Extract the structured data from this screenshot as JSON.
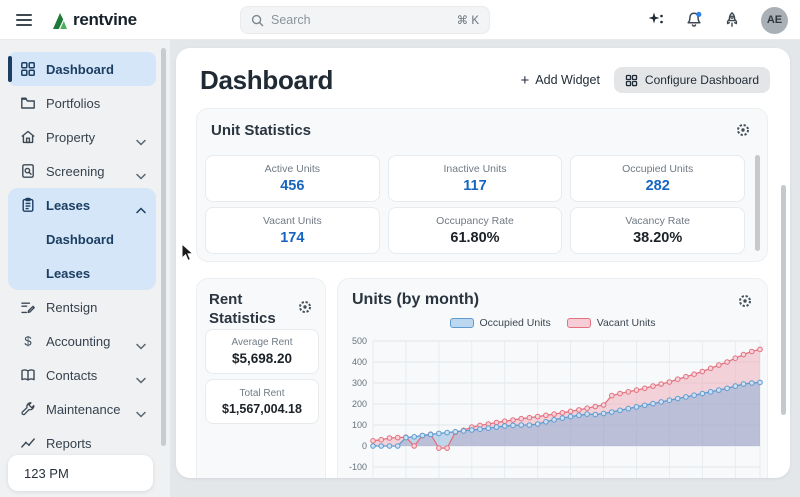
{
  "topbar": {
    "logo": "rentvine",
    "search": {
      "placeholder": "Search",
      "shortcut": "⌘ K"
    },
    "avatar": "AE",
    "brand_green": "#2e9e44",
    "notification_badge_color": "#2f80ed"
  },
  "sidebar": {
    "items": [
      {
        "label": "Dashboard",
        "icon": "grid-icon",
        "active": true
      },
      {
        "label": "Portfolios",
        "icon": "folder-icon"
      },
      {
        "label": "Property",
        "icon": "building-icon",
        "chevron": "down"
      },
      {
        "label": "Screening",
        "icon": "doc-search-icon",
        "chevron": "down"
      },
      {
        "label": "Leases",
        "icon": "clipboard-icon",
        "chevron": "up",
        "expanded": true,
        "children": [
          "Dashboard",
          "Leases"
        ]
      },
      {
        "label": "Rentsign",
        "icon": "signature-icon"
      },
      {
        "label": "Accounting",
        "icon": "dollar-icon",
        "chevron": "down"
      },
      {
        "label": "Contacts",
        "icon": "book-icon",
        "chevron": "down"
      },
      {
        "label": "Maintenance",
        "icon": "wrench-icon",
        "chevron": "down"
      },
      {
        "label": "Reports",
        "icon": "chart-line-icon"
      }
    ],
    "clock": "123 PM",
    "active_color": "#1c3e63",
    "active_bg": "#d4e6f7"
  },
  "main": {
    "title": "Dashboard",
    "add_widget": "Add Widget",
    "configure": "Configure Dashboard",
    "unit_stats": {
      "title": "Unit Statistics",
      "cards": [
        {
          "label": "Active Units",
          "value": "456",
          "emphasis": "blue"
        },
        {
          "label": "Inactive Units",
          "value": "117",
          "emphasis": "blue"
        },
        {
          "label": "Occupied Units",
          "value": "282",
          "emphasis": "blue"
        },
        {
          "label": "Vacant Units",
          "value": "174",
          "emphasis": "blue"
        },
        {
          "label": "Occupancy Rate",
          "value": "61.80%",
          "emphasis": "dark"
        },
        {
          "label": "Vacancy Rate",
          "value": "38.20%",
          "emphasis": "dark"
        }
      ],
      "value_blue": "#1565c0"
    },
    "rent_stats": {
      "title": "Rent Statistics",
      "cards": [
        {
          "label": "Average Rent",
          "value": "$5,698.20"
        },
        {
          "label": "Total Rent",
          "value": "$1,567,004.18"
        }
      ]
    }
  },
  "chart_data": {
    "type": "area",
    "title": "Units (by month)",
    "x_labels_visible": false,
    "n_points": 48,
    "ylim": [
      -100,
      500
    ],
    "y_ticks": [
      500,
      400,
      300,
      200,
      100,
      0,
      -100
    ],
    "grid": true,
    "legend_position": "top-center",
    "series": [
      {
        "name": "Occupied Units",
        "color": "#5f9bd0",
        "fill": "rgba(120,168,216,0.45)",
        "marker": "#cfe2f4",
        "legend_fill": "#bcd7f0",
        "values": [
          0,
          0,
          0,
          0,
          40,
          44,
          50,
          55,
          60,
          64,
          68,
          72,
          76,
          80,
          85,
          90,
          95,
          98,
          100,
          100,
          105,
          115,
          125,
          133,
          140,
          146,
          152,
          150,
          155,
          162,
          170,
          178,
          186,
          194,
          202,
          210,
          218,
          226,
          234,
          242,
          250,
          258,
          266,
          275,
          285,
          295,
          300,
          303
        ]
      },
      {
        "name": "Vacant Units",
        "color": "#e4717f",
        "fill": "rgba(238,150,168,0.40)",
        "marker": "#f8d4db",
        "legend_fill": "#f6cdd6",
        "values": [
          25,
          30,
          38,
          40,
          42,
          0,
          50,
          56,
          -10,
          -10,
          65,
          75,
          90,
          98,
          105,
          112,
          118,
          124,
          130,
          135,
          140,
          146,
          152,
          158,
          165,
          172,
          180,
          188,
          195,
          240,
          250,
          258,
          266,
          275,
          285,
          295,
          305,
          318,
          330,
          342,
          355,
          370,
          385,
          400,
          418,
          435,
          450,
          460
        ]
      }
    ]
  }
}
